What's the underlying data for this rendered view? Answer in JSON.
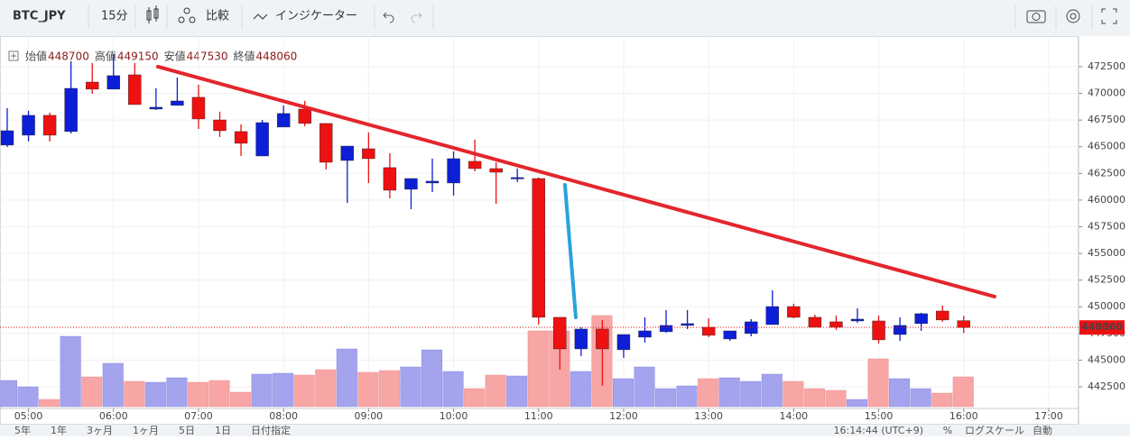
{
  "ui": {
    "symbol": "BTC_JPY",
    "interval": "15分",
    "compare": "比較",
    "indicators": "インジケーター",
    "ranges": [
      "5年",
      "1年",
      "3ヶ月",
      "1ヶ月",
      "5日",
      "1日",
      "日付指定"
    ],
    "clock": "16:14:44 (UTC+9)",
    "percent": "%",
    "log_scale": "ログスケール",
    "auto": "自動"
  },
  "chart_data": {
    "type": "candlestick",
    "ohlc_labels": [
      "始値",
      "高値",
      "安値",
      "終値"
    ],
    "categories": [
      null,
      "05:00",
      null,
      null,
      null,
      "06:00",
      null,
      null,
      null,
      "07:00",
      null,
      null,
      null,
      "08:00",
      null,
      null,
      null,
      "09:00",
      null,
      null,
      null,
      "10:00",
      null,
      null,
      null,
      "11:00",
      null,
      null,
      null,
      "12:00",
      null,
      null,
      null,
      "13:00",
      null,
      null,
      null,
      "14:00",
      null,
      null,
      null,
      "15:00",
      null,
      null,
      null,
      "16:00",
      null,
      null,
      null,
      "17:00"
    ],
    "open": [
      465150,
      466080,
      467940,
      466420,
      471060,
      470390,
      471740,
      468530,
      468870,
      469630,
      467510,
      466420,
      464130,
      466840,
      468530,
      467180,
      463710,
      464810,
      463040,
      461010,
      461600,
      461600,
      463630,
      462950,
      462020,
      462020,
      449010,
      446050,
      447910,
      445970,
      447150,
      447660,
      448250,
      448080,
      446980,
      447490,
      448330,
      450020,
      449010,
      448590,
      448670,
      448670,
      447400,
      448420,
      449600,
      448700,
      null,
      null,
      null,
      null
    ],
    "high": [
      468610,
      468360,
      468190,
      473010,
      472840,
      473680,
      472840,
      470470,
      471490,
      470810,
      468280,
      467090,
      467510,
      468870,
      469290,
      467180,
      465060,
      466330,
      464390,
      462020,
      463880,
      464560,
      465660,
      463540,
      462950,
      462110,
      449010,
      448080,
      448760,
      447400,
      449010,
      449690,
      449690,
      448920,
      447740,
      448840,
      451540,
      450280,
      449260,
      449180,
      449850,
      449180,
      449010,
      449430,
      450110,
      449150,
      null,
      null,
      null,
      null
    ],
    "low": [
      464980,
      465490,
      465490,
      466250,
      469970,
      470390,
      468950,
      468440,
      468870,
      466670,
      465910,
      464130,
      464130,
      466840,
      466920,
      462870,
      459740,
      461600,
      460160,
      459150,
      460750,
      460420,
      462700,
      459660,
      461680,
      448330,
      444110,
      445380,
      442590,
      445210,
      446640,
      447570,
      447910,
      447150,
      446810,
      447230,
      448330,
      448920,
      448080,
      447830,
      448500,
      446560,
      446810,
      447740,
      448590,
      447530,
      null,
      null,
      null,
      null
    ],
    "close": [
      466500,
      467940,
      466080,
      470470,
      470390,
      471660,
      468950,
      468700,
      469290,
      467600,
      466500,
      465320,
      467260,
      468110,
      467180,
      463540,
      465060,
      463880,
      460920,
      462020,
      461770,
      463880,
      462950,
      462610,
      462110,
      449010,
      446050,
      447910,
      446050,
      447400,
      447740,
      448250,
      448420,
      447320,
      447740,
      448590,
      450020,
      449010,
      448080,
      448080,
      448840,
      446900,
      448250,
      449350,
      448760,
      448060,
      null,
      null,
      null,
      null
    ],
    "volume": [
      29,
      22,
      8,
      78,
      33,
      48,
      28,
      27,
      32,
      27,
      29,
      16,
      36,
      37,
      35,
      41,
      64,
      38,
      40,
      44,
      63,
      39,
      20,
      35,
      34,
      84,
      84,
      39,
      101,
      31,
      44,
      20,
      23,
      31,
      32,
      28,
      36,
      28,
      20,
      18,
      8,
      53,
      31,
      20,
      15,
      33,
      null,
      null,
      null,
      null
    ],
    "up_color": "#0d1fd6",
    "down_color": "#ee1111",
    "volume_up_color": "#a3a3ee",
    "volume_down_color": "#f7a5a5",
    "ylim": [
      440470,
      475370
    ],
    "yticks": [
      442500,
      445000,
      447500,
      450000,
      452500,
      455000,
      457500,
      460000,
      462500,
      465000,
      467500,
      470000,
      472500
    ],
    "grid": true,
    "trendlines": [
      {
        "color": "#e3262c",
        "points": [
          [
            7.09,
            472500
          ],
          [
            46.45,
            450950
          ]
        ]
      },
      {
        "color": "#29a3dc",
        "points": [
          [
            26.24,
            461430
          ],
          [
            26.75,
            449010
          ]
        ]
      }
    ]
  }
}
